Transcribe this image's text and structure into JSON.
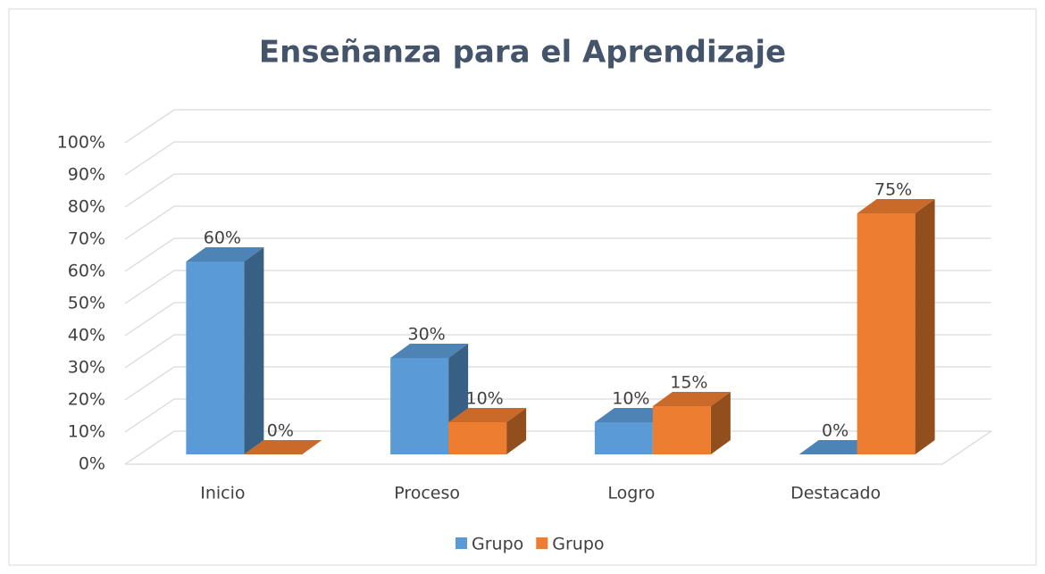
{
  "chart_data": {
    "type": "bar3d",
    "title": "Enseñanza para el Aprendizaje",
    "categories": [
      "Inicio",
      "Proceso",
      "Logro",
      "Destacado"
    ],
    "series": [
      {
        "name": "Grupo",
        "color": "#5b9bd5",
        "values": [
          60,
          30,
          10,
          0
        ],
        "value_labels": [
          "60%",
          "30%",
          "10%",
          "0%"
        ]
      },
      {
        "name": "Grupo",
        "color": "#ed7d31",
        "values": [
          0,
          10,
          15,
          75
        ],
        "value_labels": [
          "0%",
          "10%",
          "15%",
          "75%"
        ]
      }
    ],
    "ylim": [
      0,
      100
    ],
    "yticks": [
      {
        "value": 0,
        "label": "0%"
      },
      {
        "value": 10,
        "label": "10%"
      },
      {
        "value": 20,
        "label": "20%"
      },
      {
        "value": 30,
        "label": "30%"
      },
      {
        "value": 40,
        "label": "40%"
      },
      {
        "value": 50,
        "label": "50%"
      },
      {
        "value": 60,
        "label": "60%"
      },
      {
        "value": 70,
        "label": "70%"
      },
      {
        "value": 80,
        "label": "80%"
      },
      {
        "value": 90,
        "label": "90%"
      },
      {
        "value": 100,
        "label": "100%"
      }
    ],
    "grid": true,
    "legend": "bottom"
  }
}
